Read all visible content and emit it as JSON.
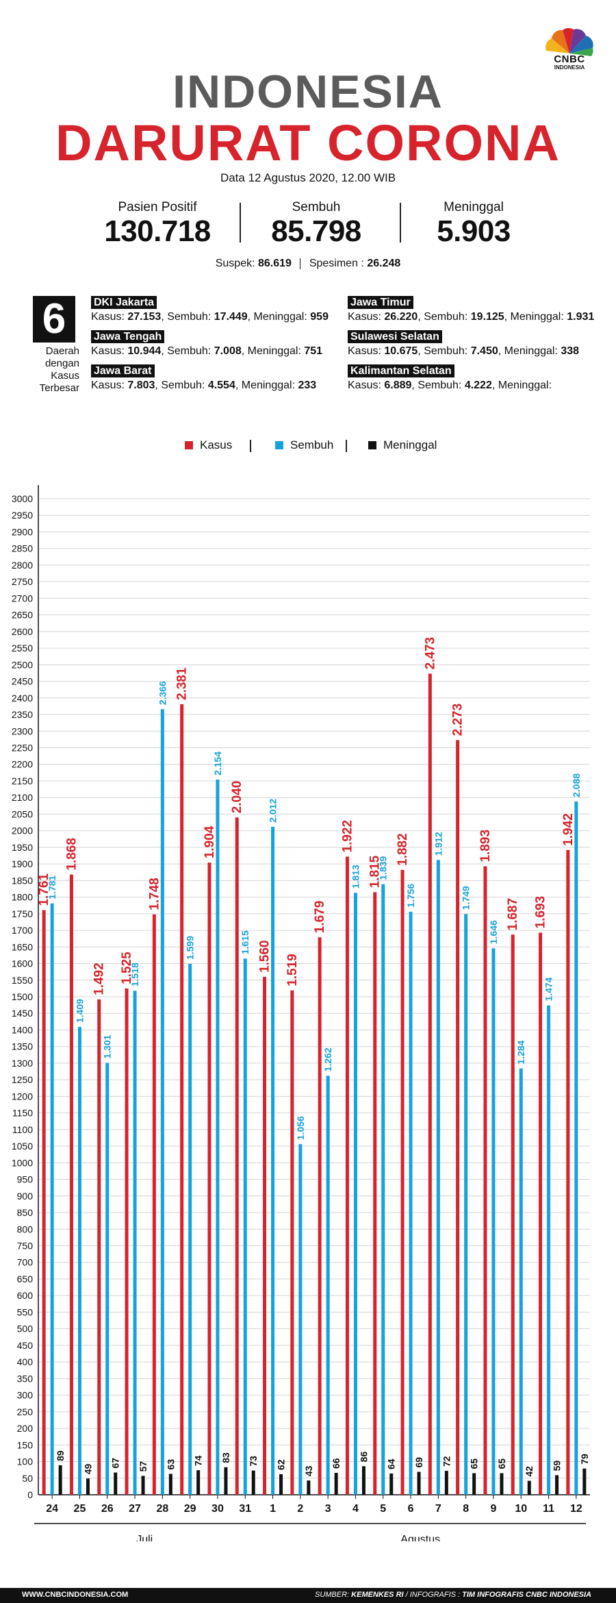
{
  "brand": {
    "logo_text": "CNBC",
    "logo_sub": "INDONESIA"
  },
  "header": {
    "title_line1": "INDONESIA",
    "title_line2": "DARURAT CORONA",
    "date": "Data 12 Agustus 2020, 12.00 WIB"
  },
  "stats": [
    {
      "label": "Pasien Positif",
      "value": "130.718"
    },
    {
      "label": "Sembuh",
      "value": "85.798"
    },
    {
      "label": "Meninggal",
      "value": "5.903"
    }
  ],
  "extra": {
    "suspek_label": "Suspek:",
    "suspek_value": "86.619",
    "spesimen_label": "Spesimen :",
    "spesimen_value": "26.248"
  },
  "regions_box": {
    "number": "6",
    "line1": "Daerah",
    "line2": "dengan",
    "line3": "Kasus",
    "line4": "Terbesar"
  },
  "regions": [
    {
      "name": "DKI Jakarta",
      "kasus": "27.153",
      "sembuh": "17.449",
      "meninggal": "959"
    },
    {
      "name": "Jawa Tengah",
      "kasus": "10.944",
      "sembuh": "7.008",
      "meninggal": "751"
    },
    {
      "name": "Jawa Barat",
      "kasus": "7.803",
      "sembuh": "4.554",
      "meninggal": "233"
    },
    {
      "name": "Jawa Timur",
      "kasus": "26.220",
      "sembuh": "19.125",
      "meninggal": "1.931"
    },
    {
      "name": "Sulawesi Selatan",
      "kasus": "10.675",
      "sembuh": "7.450",
      "meninggal": "338"
    },
    {
      "name": "Kalimantan Selatan",
      "kasus": "6.889",
      "sembuh": "4.222",
      "meninggal": ""
    }
  ],
  "region_labels": {
    "kasus": "Kasus:",
    "sembuh": "Sembuh:",
    "meninggal": "Meninggal:"
  },
  "legend": {
    "kasus": "Kasus",
    "sembuh": "Sembuh",
    "meninggal": "Meninggal"
  },
  "colors": {
    "kasus": "#d7232b",
    "sembuh": "#16a3dc",
    "meninggal": "#111111",
    "title_gray": "#5b5b5b"
  },
  "chart_data": {
    "type": "bar",
    "categories": [
      "24",
      "25",
      "26",
      "27",
      "28",
      "29",
      "30",
      "31",
      "1",
      "2",
      "3",
      "4",
      "5",
      "6",
      "7",
      "8",
      "9",
      "10",
      "11",
      "12"
    ],
    "month_groups": [
      {
        "label": "Juli",
        "from": 0,
        "to": 7
      },
      {
        "label": "Agustus",
        "from": 8,
        "to": 19
      }
    ],
    "series": [
      {
        "name": "Kasus",
        "color": "#d7232b",
        "values": [
          1761,
          1868,
          1492,
          1525,
          1748,
          2381,
          1904,
          2040,
          1560,
          1519,
          1679,
          1922,
          1815,
          1882,
          2473,
          2273,
          1893,
          1687,
          1693,
          1942
        ],
        "labels": [
          "1.761",
          "1.868",
          "1.492",
          "1.525",
          "1.748",
          "2.381",
          "1.904",
          "2.040",
          "1.560",
          "1.519",
          "1.679",
          "1.922",
          "1.815",
          "1.882",
          "2.473",
          "2.273",
          "1.893",
          "1.687",
          "1.693",
          "1.942"
        ]
      },
      {
        "name": "Sembuh",
        "color": "#16a3dc",
        "values": [
          1781,
          1409,
          1301,
          1518,
          2366,
          1599,
          2154,
          1615,
          2012,
          1056,
          1262,
          1813,
          1839,
          1756,
          1912,
          1749,
          1646,
          1284,
          1474,
          2088
        ],
        "labels": [
          "1.781",
          "1.409",
          "1.301",
          "1.518",
          "2.366",
          "1.599",
          "2.154",
          "1.615",
          "2.012",
          "1.056",
          "1.262",
          "1.813",
          "1.839",
          "1.756",
          "1.912",
          "1.749",
          "1.646",
          "1.284",
          "1.474",
          "2.088"
        ]
      },
      {
        "name": "Meninggal",
        "color": "#111111",
        "values": [
          89,
          49,
          67,
          57,
          63,
          74,
          83,
          73,
          62,
          43,
          66,
          86,
          64,
          69,
          72,
          65,
          65,
          42,
          59,
          79
        ],
        "labels": [
          "89",
          "49",
          "67",
          "57",
          "63",
          "74",
          "83",
          "73",
          "62",
          "43",
          "66",
          "86",
          "64",
          "69",
          "72",
          "65",
          "65",
          "42",
          "59",
          "79"
        ]
      }
    ],
    "ylim": [
      0,
      3000
    ],
    "yticks": [
      0,
      50,
      100,
      150,
      200,
      250,
      300,
      350,
      400,
      450,
      500,
      550,
      600,
      650,
      700,
      750,
      800,
      850,
      900,
      950,
      1000,
      1050,
      1100,
      1150,
      1200,
      1250,
      1300,
      1350,
      1400,
      1450,
      1500,
      1550,
      1600,
      1650,
      1700,
      1750,
      1800,
      1850,
      1900,
      1950,
      2000,
      2050,
      2100,
      2150,
      2200,
      2250,
      2300,
      2350,
      2400,
      2450,
      2500,
      2550,
      2600,
      2650,
      2700,
      2750,
      2800,
      2850,
      2900,
      2950,
      3000
    ],
    "grid": true,
    "legend_position": "top-center"
  },
  "footer": {
    "left": "WWW.CNBCINDONESIA.COM",
    "source_label": "SUMBER:",
    "source": "KEMENKES RI",
    "info_label": "/ INFOGRAFIS :",
    "info": "TIM INFOGRAFIS CNBC INDONESIA"
  }
}
